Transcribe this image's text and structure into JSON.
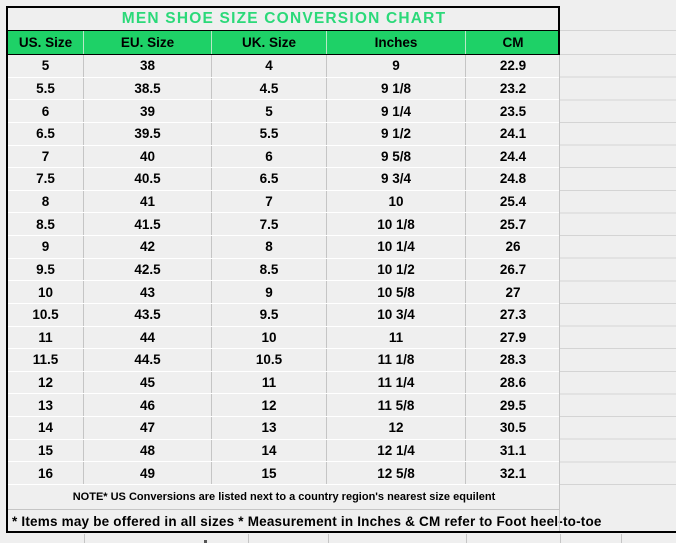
{
  "title": "MEN SHOE SIZE CONVERSION CHART",
  "columns": [
    "US. Size",
    "EU. Size",
    "UK. Size",
    "Inches",
    "CM"
  ],
  "rows": [
    [
      "5",
      "38",
      "4",
      "9",
      "22.9"
    ],
    [
      "5.5",
      "38.5",
      "4.5",
      "9 1/8",
      "23.2"
    ],
    [
      "6",
      "39",
      "5",
      "9 1/4",
      "23.5"
    ],
    [
      "6.5",
      "39.5",
      "5.5",
      "9 1/2",
      "24.1"
    ],
    [
      "7",
      "40",
      "6",
      "9 5/8",
      "24.4"
    ],
    [
      "7.5",
      "40.5",
      "6.5",
      "9 3/4",
      "24.8"
    ],
    [
      "8",
      "41",
      "7",
      "10",
      "25.4"
    ],
    [
      "8.5",
      "41.5",
      "7.5",
      "10 1/8",
      "25.7"
    ],
    [
      "9",
      "42",
      "8",
      "10 1/4",
      "26"
    ],
    [
      "9.5",
      "42.5",
      "8.5",
      "10 1/2",
      "26.7"
    ],
    [
      "10",
      "43",
      "9",
      "10 5/8",
      "27"
    ],
    [
      "10.5",
      "43.5",
      "9.5",
      "10 3/4",
      "27.3"
    ],
    [
      "11",
      "44",
      "10",
      "11",
      "27.9"
    ],
    [
      "11.5",
      "44.5",
      "10.5",
      "11 1/8",
      "28.3"
    ],
    [
      "12",
      "45",
      "11",
      "11 1/4",
      "28.6"
    ],
    [
      "13",
      "46",
      "12",
      "11 5/8",
      "29.5"
    ],
    [
      "14",
      "47",
      "13",
      "12",
      "30.5"
    ],
    [
      "15",
      "48",
      "14",
      "12 1/4",
      "31.1"
    ],
    [
      "16",
      "49",
      "15",
      "12 5/8",
      "32.1"
    ]
  ],
  "notes": {
    "line1": "NOTE* US Conversions are listed next to a country region's nearest size equilent",
    "line2": "* Items may be offered in all sizes * Measurement in Inches & CM refer to Foot heel-to-toe"
  },
  "colors": {
    "header_bg": "#1ed167",
    "title_text": "#2bd979",
    "cell_bg": "#efefef",
    "grid_vertical": "#c5c5c5",
    "grid_horizontal": "#ffffff",
    "outer_border": "#000000"
  }
}
